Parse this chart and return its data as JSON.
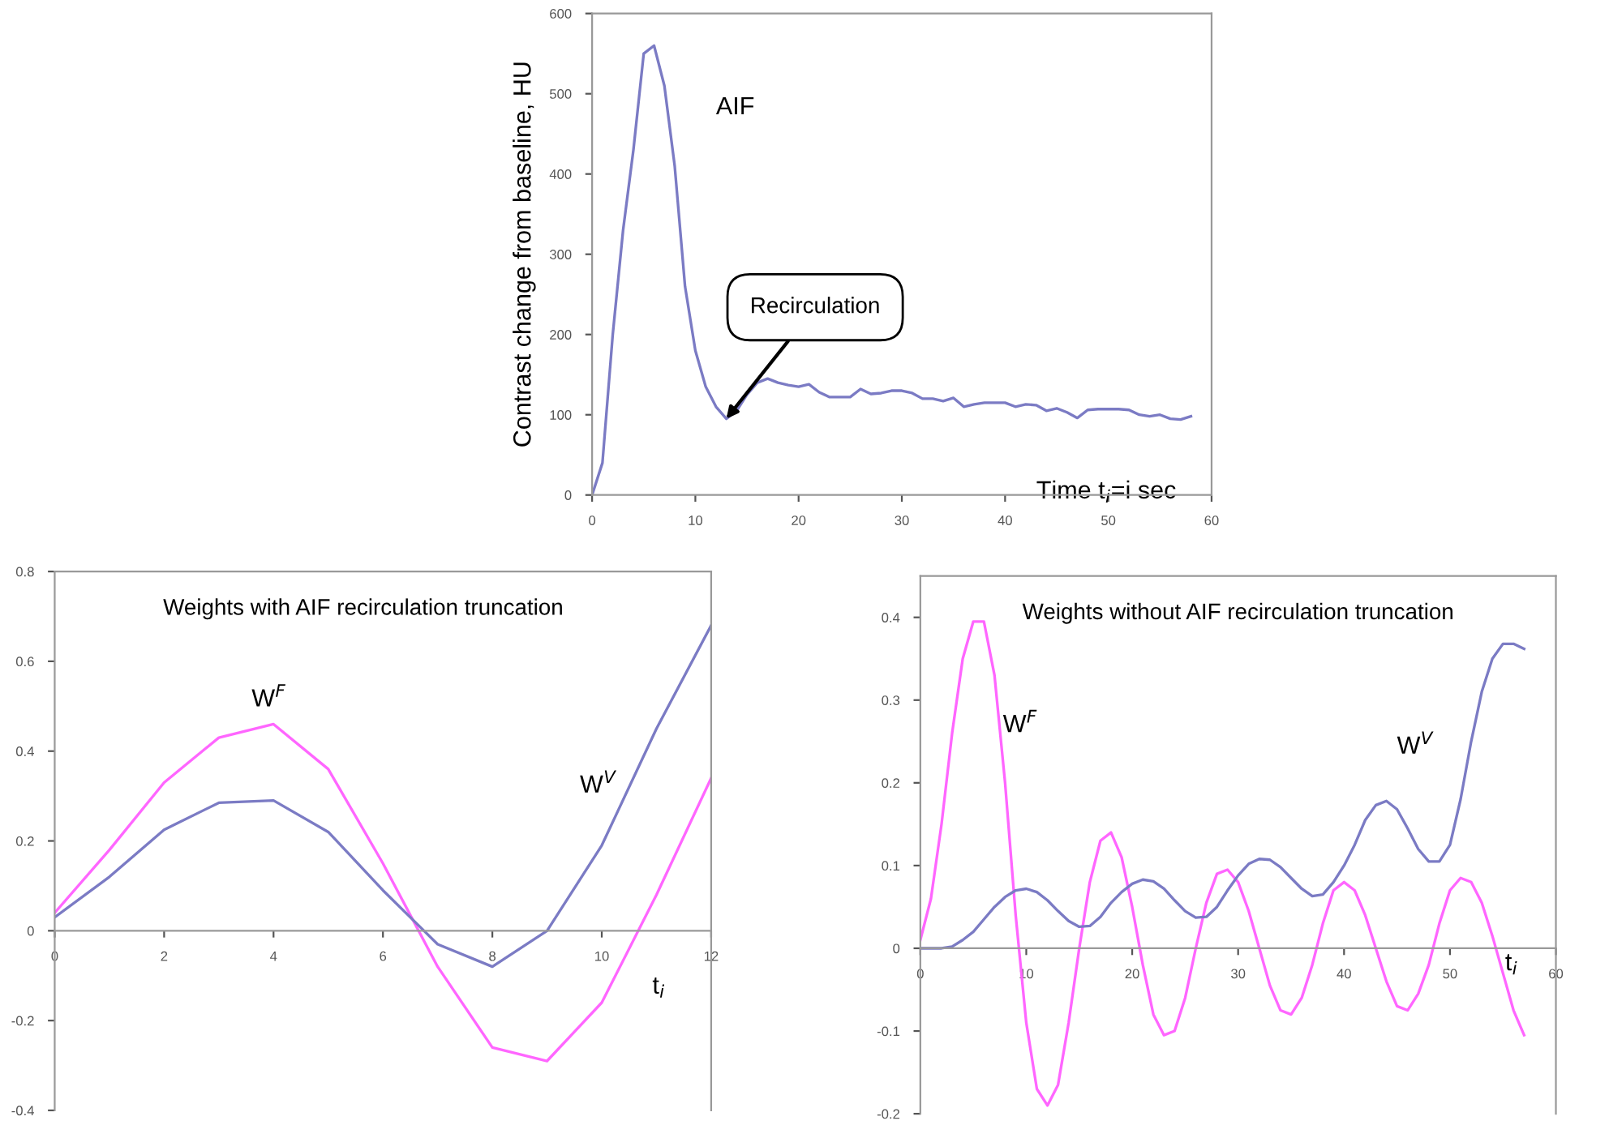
{
  "chart_data": [
    {
      "type": "line",
      "ylabel": "Contrast change from baseline, HU",
      "xlabel": "Time t$_{i}$=i sec",
      "xlim": [
        0,
        60
      ],
      "xticks": [
        0,
        10,
        20,
        30,
        40,
        50,
        60
      ],
      "ylim": [
        0,
        600
      ],
      "yticks": [
        0,
        100,
        200,
        300,
        400,
        500,
        600
      ],
      "grid": false,
      "legend": false,
      "x": [
        0,
        1,
        2,
        3,
        4,
        5,
        6,
        7,
        8,
        9,
        10,
        11,
        12,
        13,
        14,
        15,
        16,
        17,
        18,
        19,
        20,
        21,
        22,
        23,
        24,
        25,
        26,
        27,
        28,
        29,
        30,
        31,
        32,
        33,
        34,
        35,
        36,
        37,
        38,
        39,
        40,
        41,
        42,
        43,
        44,
        45,
        46,
        47,
        48,
        49,
        50,
        51,
        52,
        53,
        54,
        55,
        56,
        57,
        58
      ],
      "series": [
        {
          "name": "AIF",
          "color": "#7b7bc4",
          "values": [
            0,
            40,
            200,
            330,
            430,
            550,
            560,
            510,
            410,
            260,
            180,
            135,
            110,
            95,
            105,
            125,
            140,
            145,
            140,
            137,
            135,
            138,
            128,
            122,
            122,
            122,
            132,
            126,
            127,
            130,
            130,
            127,
            120,
            120,
            117,
            121,
            110,
            113,
            115,
            115,
            115,
            110,
            113,
            112,
            105,
            108,
            103,
            96,
            106,
            107,
            107,
            107,
            106,
            100,
            98,
            100,
            95,
            94,
            98
          ]
        }
      ],
      "annotations": [
        {
          "text": "Recirculation",
          "x": 13,
          "y": 95
        }
      ]
    },
    {
      "type": "line",
      "title": "Weights with AIF recirculation truncation",
      "xlabel": "t$_{i}$",
      "xlim": [
        0,
        12
      ],
      "xticks": [
        0,
        2,
        4,
        6,
        8,
        10,
        12
      ],
      "ylim": [
        -0.4,
        0.8
      ],
      "yticks": [
        -0.4,
        -0.2,
        0,
        0.2,
        0.4,
        0.6,
        0.8
      ],
      "grid": false,
      "legend": false,
      "x": [
        0,
        1,
        2,
        3,
        4,
        5,
        6,
        7,
        8,
        9,
        10,
        11,
        12
      ],
      "series": [
        {
          "name": "W$^{F}$",
          "color": "#ff66ff",
          "values": [
            0.04,
            0.18,
            0.33,
            0.43,
            0.46,
            0.36,
            0.15,
            -0.08,
            -0.26,
            -0.29,
            -0.16,
            0.08,
            0.34
          ]
        },
        {
          "name": "W$^{V}$",
          "color": "#7b7bc4",
          "values": [
            0.03,
            0.12,
            0.225,
            0.285,
            0.29,
            0.22,
            0.09,
            -0.03,
            -0.08,
            0.0,
            0.19,
            0.45,
            0.68
          ]
        }
      ]
    },
    {
      "type": "line",
      "title": "Weights without AIF recirculation truncation",
      "xlabel": "t$_{i}$",
      "xlim": [
        0,
        60
      ],
      "xticks": [
        0,
        10,
        20,
        30,
        40,
        50,
        60
      ],
      "ylim": [
        -0.2,
        0.45
      ],
      "yticks": [
        -0.2,
        -0.1,
        0,
        0.1,
        0.2,
        0.3,
        0.4
      ],
      "grid": false,
      "legend": false,
      "x": [
        0,
        1,
        2,
        3,
        4,
        5,
        6,
        7,
        8,
        9,
        10,
        11,
        12,
        13,
        14,
        15,
        16,
        17,
        18,
        19,
        20,
        21,
        22,
        23,
        24,
        25,
        26,
        27,
        28,
        29,
        30,
        31,
        32,
        33,
        34,
        35,
        36,
        37,
        38,
        39,
        40,
        41,
        42,
        43,
        44,
        45,
        46,
        47,
        48,
        49,
        50,
        51,
        52,
        53,
        54,
        55,
        56,
        57
      ],
      "series": [
        {
          "name": "W$^{F}$",
          "color": "#ff66ff",
          "values": [
            0.01,
            0.06,
            0.15,
            0.26,
            0.35,
            0.395,
            0.395,
            0.33,
            0.2,
            0.04,
            -0.09,
            -0.17,
            -0.19,
            -0.165,
            -0.09,
            0.0,
            0.08,
            0.13,
            0.14,
            0.11,
            0.05,
            -0.02,
            -0.08,
            -0.105,
            -0.1,
            -0.06,
            0.0,
            0.055,
            0.09,
            0.095,
            0.08,
            0.045,
            0.0,
            -0.045,
            -0.075,
            -0.08,
            -0.06,
            -0.02,
            0.03,
            0.07,
            0.08,
            0.07,
            0.04,
            0.0,
            -0.04,
            -0.07,
            -0.075,
            -0.055,
            -0.02,
            0.03,
            0.07,
            0.085,
            0.08,
            0.055,
            0.015,
            -0.03,
            -0.075,
            -0.105
          ]
        },
        {
          "name": "W$^{V}$",
          "color": "#7b7bc4",
          "values": [
            0.0,
            0.0,
            0.0,
            0.002,
            0.01,
            0.02,
            0.035,
            0.05,
            0.062,
            0.07,
            0.072,
            0.068,
            0.058,
            0.045,
            0.033,
            0.026,
            0.027,
            0.038,
            0.055,
            0.068,
            0.078,
            0.083,
            0.081,
            0.072,
            0.058,
            0.045,
            0.037,
            0.038,
            0.05,
            0.07,
            0.088,
            0.102,
            0.108,
            0.107,
            0.098,
            0.085,
            0.072,
            0.063,
            0.065,
            0.08,
            0.1,
            0.125,
            0.155,
            0.173,
            0.178,
            0.168,
            0.145,
            0.12,
            0.105,
            0.105,
            0.125,
            0.18,
            0.25,
            0.31,
            0.35,
            0.368,
            0.368,
            0.362
          ]
        }
      ]
    }
  ]
}
